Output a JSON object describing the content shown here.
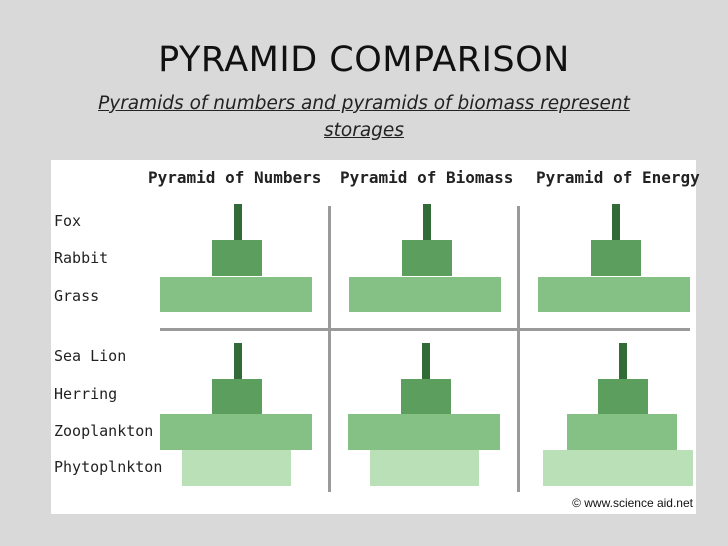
{
  "title": "PYRAMID COMPARISON",
  "subtitle": "Pyramids of numbers and pyramids of biomass represent storages",
  "columns": [
    "Pyramid of Numbers",
    "Pyramid of Biomass",
    "Pyramid of Energy"
  ],
  "rows_top": [
    "Fox",
    "Rabbit",
    "Grass"
  ],
  "rows_bottom": [
    "Sea Lion",
    "Herring",
    "Zooplankton",
    "Phytoplnkton"
  ],
  "credit": "© www.science aid.net"
}
